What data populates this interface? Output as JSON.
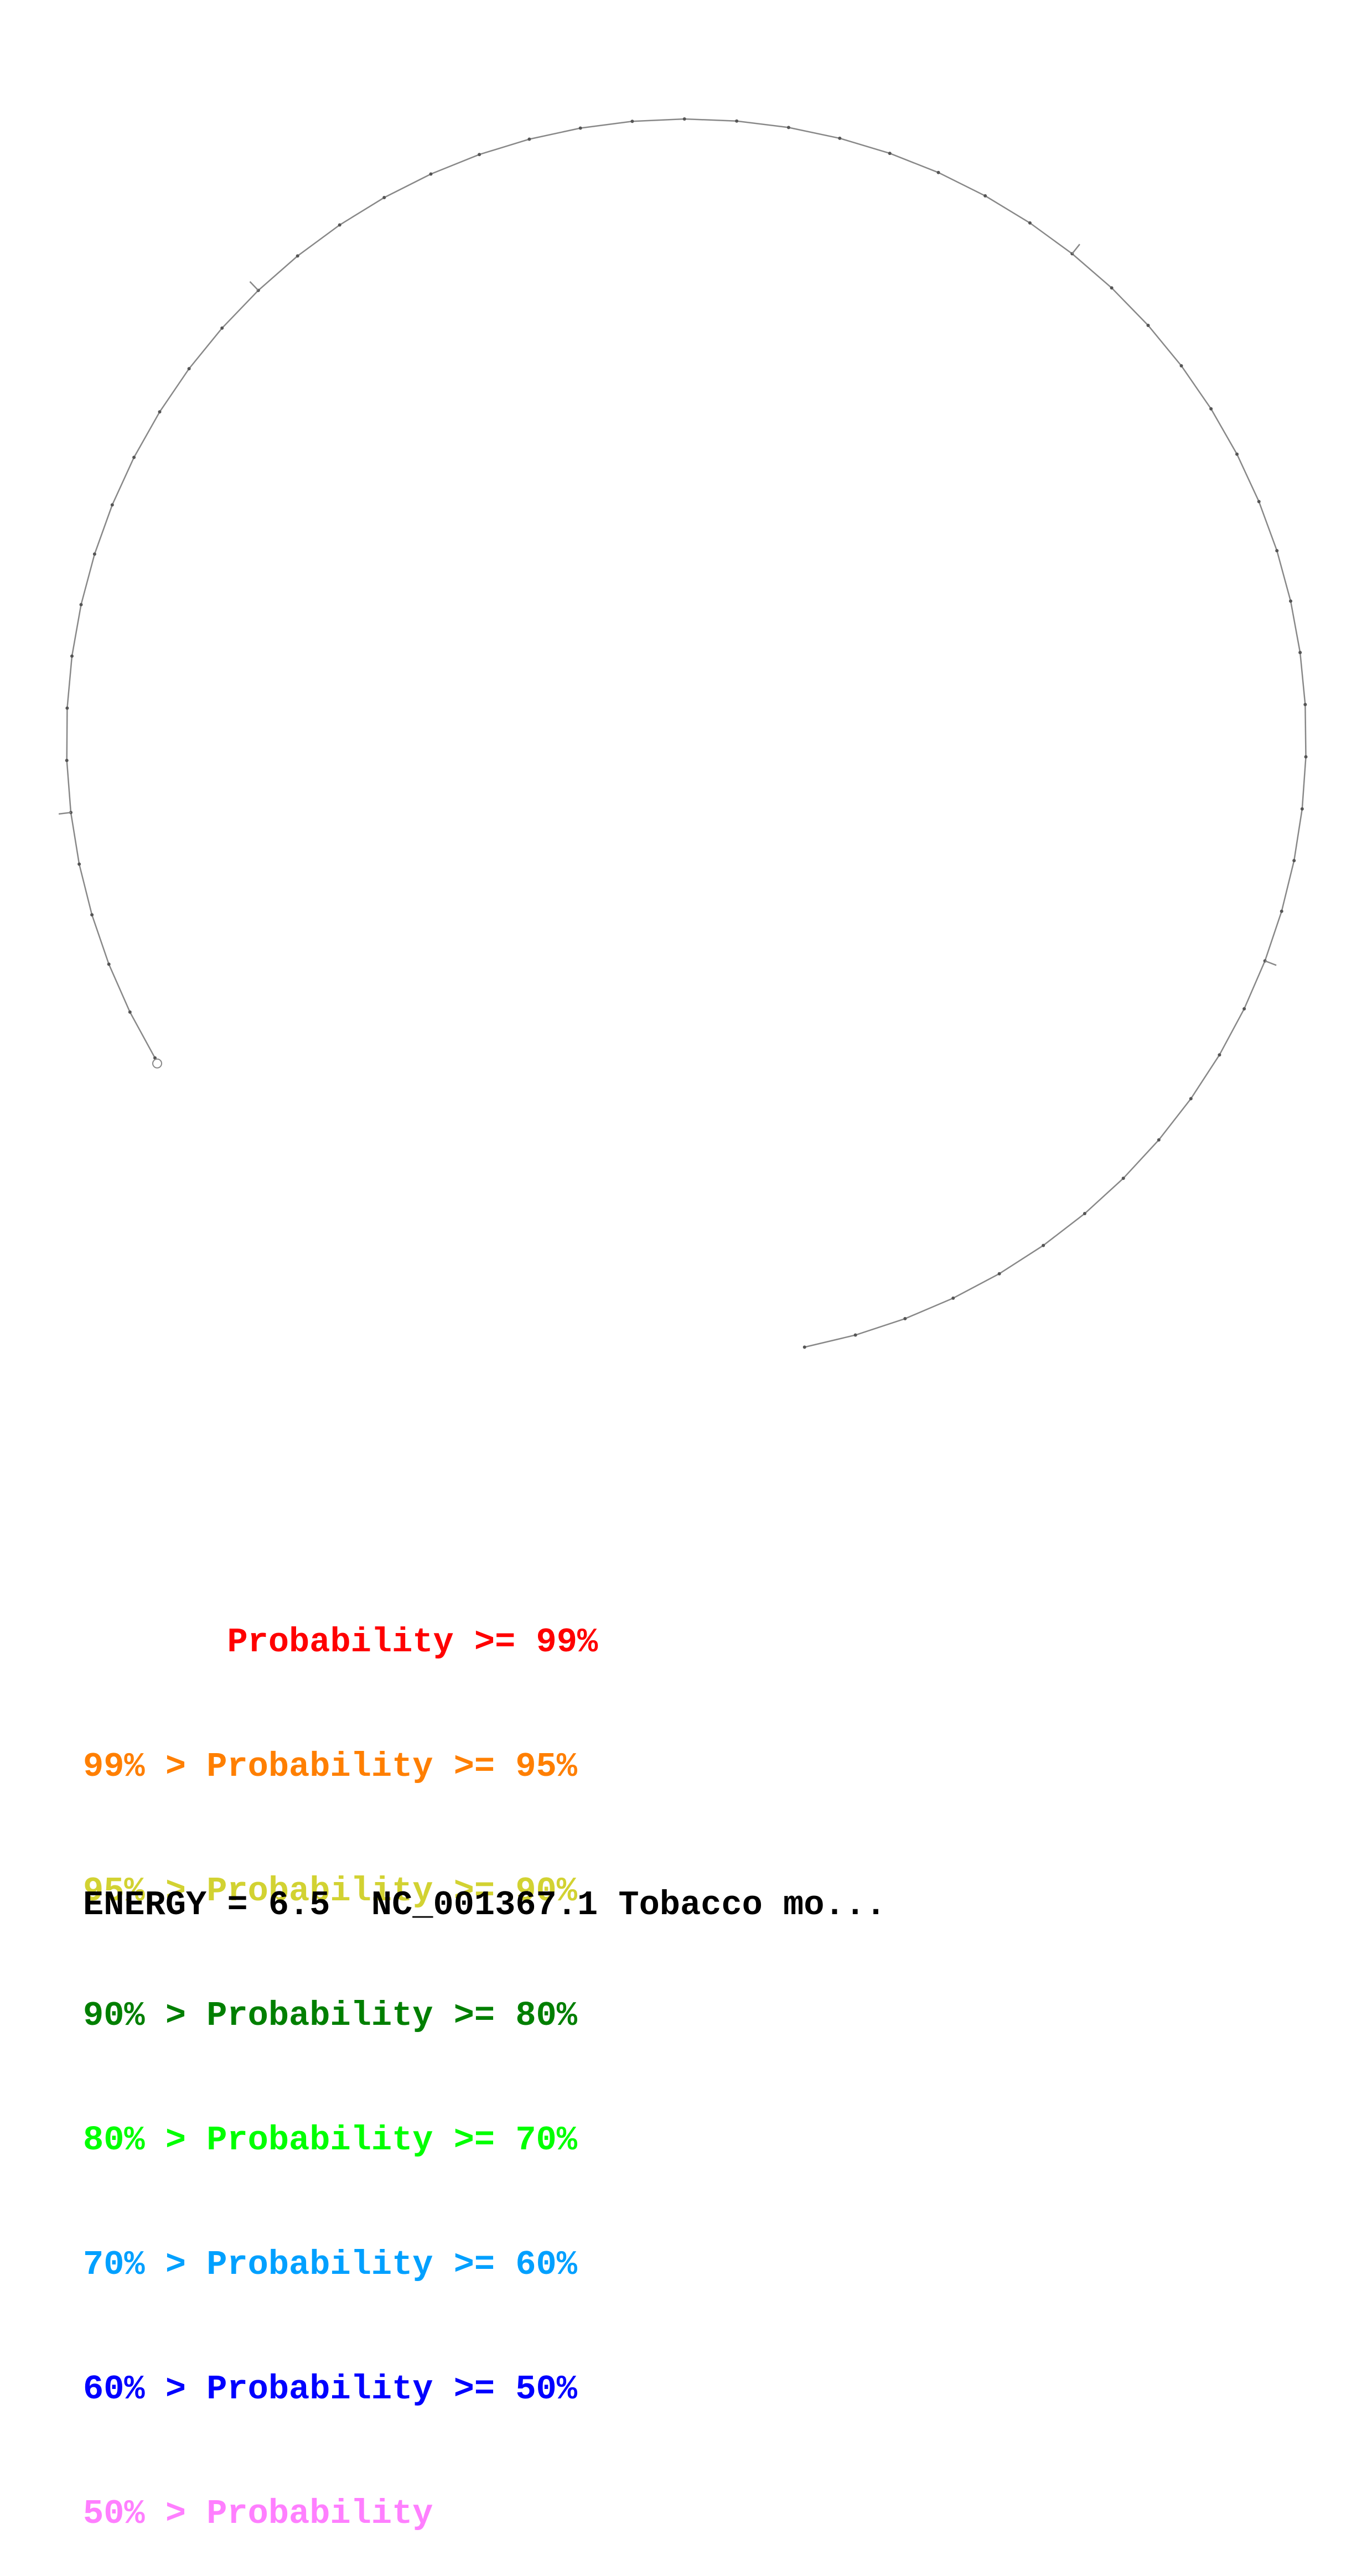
{
  "legend": {
    "rows": [
      {
        "text": "       Probability >= 99%",
        "color": "#ff0000"
      },
      {
        "text": "99% > Probability >= 95%",
        "color": "#ff7f00"
      },
      {
        "text": "95% > Probability >= 90%",
        "color": "#d2d232"
      },
      {
        "text": "90% > Probability >= 80%",
        "color": "#007f00"
      },
      {
        "text": "80% > Probability >= 70%",
        "color": "#00ff00"
      },
      {
        "text": "70% > Probability >= 60%",
        "color": "#00a0ff"
      },
      {
        "text": "60% > Probability >= 50%",
        "color": "#0000ff"
      },
      {
        "text": "50% > Probability",
        "color": "#ff7fff"
      }
    ]
  },
  "footer": {
    "energy_text": "ENERGY = 6.5  NC_001367.1 Tobacco mo..."
  },
  "colors": {
    "backbone": "#888888",
    "nucleotide_tick": "#555555"
  }
}
